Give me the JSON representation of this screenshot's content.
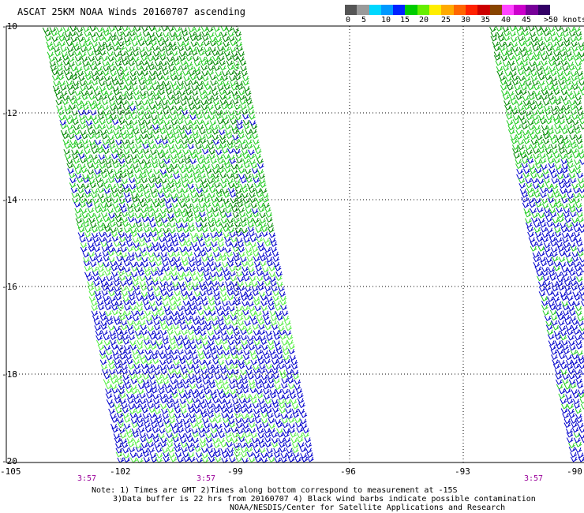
{
  "title": "ASCAT 25KM NOAA Winds 20160707 ascending",
  "colorbar": {
    "labels": [
      "0",
      "5",
      "10",
      "15",
      "20",
      "25",
      "30",
      "35",
      "40",
      "45",
      ">50 knots"
    ],
    "colors": [
      "#555555",
      "#9a9a9a",
      "#00d8ff",
      "#0099ff",
      "#0022ff",
      "#00cc00",
      "#66ee00",
      "#ffee00",
      "#ffaa00",
      "#ff6600",
      "#ff2200",
      "#cc0000",
      "#884400",
      "#ff44ff",
      "#cc00cc",
      "#770099",
      "#330066"
    ]
  },
  "map": {
    "lat_labels": [
      "-10",
      "-12",
      "-14",
      "-16",
      "-18",
      "-20"
    ],
    "lon_labels": [
      "-105",
      "-102",
      "-99",
      "-96",
      "-93",
      "-90"
    ],
    "times": [
      "3:57",
      "3:57",
      "3:57"
    ],
    "barb_colors": {
      "dark_green": "#008800",
      "green": "#22cc22",
      "light_green": "#55ee44",
      "blue": "#0000cc"
    }
  },
  "notes": {
    "line1": "Note: 1) Times are GMT 2)Times along bottom correspond to measurement at -15S",
    "line2": "3)Data buffer is 22 hrs from 20160707 4) Black wind barbs indicate possible contamination",
    "line3": "NOAA/NESDIS/Center for Satellite Applications and Research"
  }
}
